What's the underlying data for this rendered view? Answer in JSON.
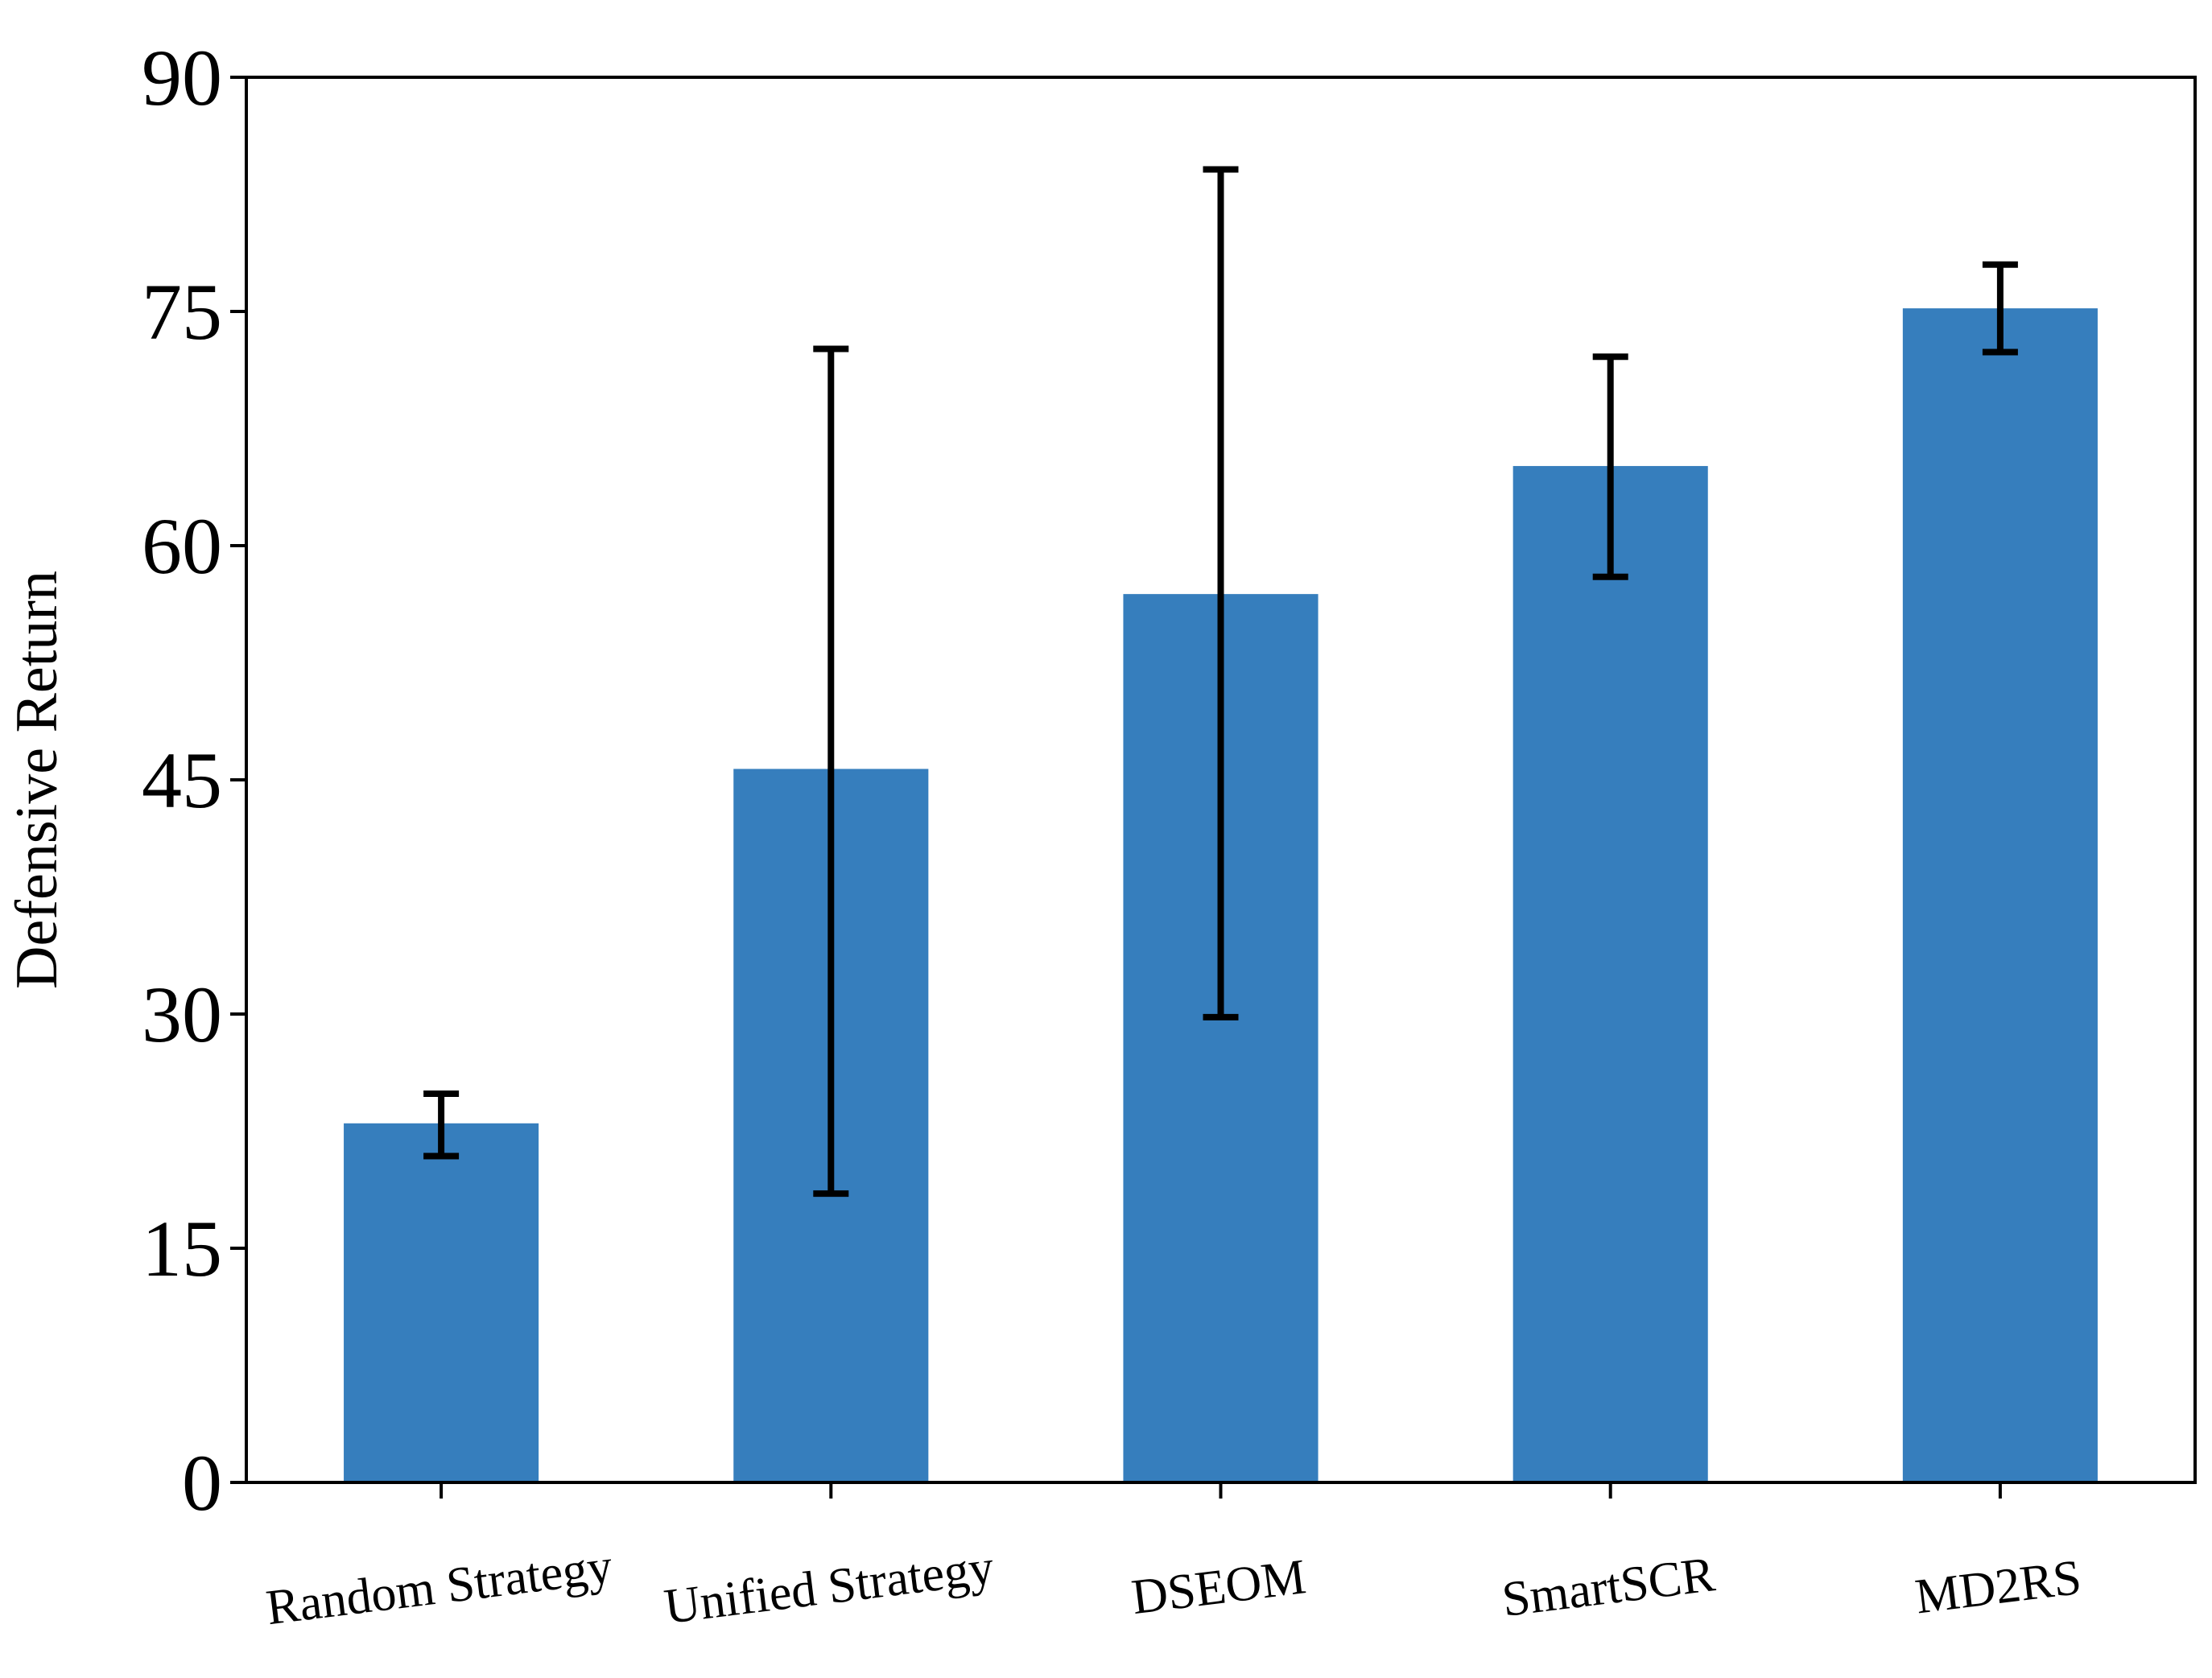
{
  "chart_data": {
    "type": "bar",
    "title": "",
    "xlabel": "",
    "ylabel": "Defensive Return",
    "categories": [
      "Random Strategy",
      "Unified Strategy",
      "DSEOM",
      "SmartSCR",
      "MD2RS"
    ],
    "values": [
      23.0,
      45.7,
      56.9,
      65.1,
      75.2
    ],
    "error_low": [
      20.9,
      18.5,
      29.8,
      58.0,
      72.4
    ],
    "error_high": [
      24.9,
      72.6,
      84.1,
      72.1,
      78.0
    ],
    "ylim": [
      0,
      90
    ],
    "yticks": [
      0,
      15,
      30,
      45,
      60,
      75,
      90
    ],
    "bar_color": "#367ebd",
    "errorbar_color": "#000000",
    "grid": false,
    "legend": "none"
  }
}
